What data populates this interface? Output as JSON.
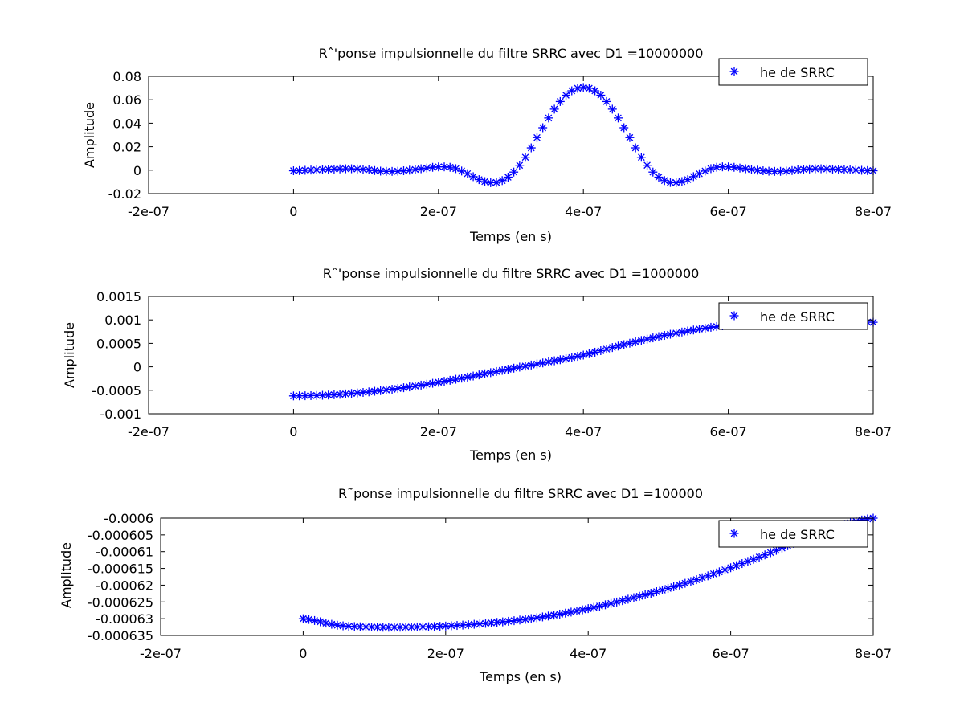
{
  "chart_data": [
    {
      "type": "scatter",
      "title": "Rˆ'ponse impulsionnelle du filtre SRRC avec D1 =10000000",
      "xlabel": "Temps (en s)",
      "ylabel": "Amplitude",
      "xlim": [
        -2e-07,
        8e-07
      ],
      "ylim": [
        -0.02,
        0.08
      ],
      "xticks": [
        -2e-07,
        0,
        2e-07,
        4e-07,
        6e-07,
        8e-07
      ],
      "xtick_labels": [
        "-2e-07",
        "0",
        "2e-07",
        "4e-07",
        "6e-07",
        "8e-07"
      ],
      "yticks": [
        -0.02,
        0,
        0.02,
        0.04,
        0.06,
        0.08
      ],
      "ytick_labels": [
        "-0.02",
        "0",
        "0.02",
        "0.04",
        "0.06",
        "0.08"
      ],
      "legend": "top-right",
      "series": [
        {
          "name": "he de SRRC",
          "color": "#0000ff",
          "marker": "asterisk",
          "x": [
            0,
            2e-08,
            4e-08,
            6e-08,
            8e-08,
            1e-07,
            1.2e-07,
            1.4e-07,
            1.6e-07,
            1.8e-07,
            2e-07,
            2.2e-07,
            2.4e-07,
            2.6e-07,
            2.8e-07,
            3e-07,
            3.2e-07,
            3.4e-07,
            3.6e-07,
            3.8e-07,
            4e-07,
            4.2e-07,
            4.4e-07,
            4.6e-07,
            4.8e-07,
            5e-07,
            5.2e-07,
            5.4e-07,
            5.6e-07,
            5.8e-07,
            6e-07,
            6.2e-07,
            6.4e-07,
            6.6e-07,
            6.8e-07,
            7e-07,
            7.2e-07,
            7.4e-07,
            7.6e-07,
            7.8e-07,
            8e-07
          ],
          "y": [
            -0.0005,
            0.0,
            0.0005,
            0.001,
            0.0012,
            0.0005,
            -0.0008,
            -0.001,
            0.0,
            0.0015,
            0.0028,
            0.002,
            -0.003,
            -0.009,
            -0.0105,
            -0.004,
            0.011,
            0.032,
            0.052,
            0.066,
            0.0705,
            0.066,
            0.052,
            0.032,
            0.011,
            -0.004,
            -0.0105,
            -0.009,
            -0.003,
            0.002,
            0.0028,
            0.0015,
            0.0,
            -0.001,
            -0.0008,
            0.0005,
            0.0012,
            0.001,
            0.0005,
            0.0,
            -0.0005
          ]
        }
      ]
    },
    {
      "type": "scatter",
      "title": "Rˆ'ponse impulsionnelle du filtre SRRC avec D1 =1000000",
      "xlabel": "Temps (en s)",
      "ylabel": "Amplitude",
      "xlim": [
        -2e-07,
        8e-07
      ],
      "ylim": [
        -0.001,
        0.0015
      ],
      "xticks": [
        -2e-07,
        0,
        2e-07,
        4e-07,
        6e-07,
        8e-07
      ],
      "xtick_labels": [
        "-2e-07",
        "0",
        "2e-07",
        "4e-07",
        "6e-07",
        "8e-07"
      ],
      "yticks": [
        -0.001,
        -0.0005,
        0,
        0.0005,
        0.001,
        0.0015
      ],
      "ytick_labels": [
        "-0.001",
        "-0.0005",
        "0",
        "0.0005",
        "0.001",
        "0.0015"
      ],
      "legend": "top-right",
      "series": [
        {
          "name": "he de SRRC",
          "color": "#0000ff",
          "marker": "asterisk",
          "x": [
            0,
            5e-08,
            1e-07,
            1.5e-07,
            2e-07,
            2.5e-07,
            3e-07,
            3.5e-07,
            4e-07,
            4.5e-07,
            5e-07,
            5.5e-07,
            6e-07,
            6.5e-07,
            7e-07,
            7.5e-07,
            8e-07
          ],
          "y": [
            -0.00062,
            -0.0006,
            -0.00054,
            -0.00045,
            -0.00033,
            -0.00019,
            -4e-05,
            0.0001,
            0.00025,
            0.00045,
            0.00063,
            0.00078,
            0.00089,
            0.00096,
            0.00099,
            0.00098,
            0.00095
          ]
        }
      ]
    },
    {
      "type": "scatter",
      "title": "R˜ponse impulsionnelle du filtre SRRC avec D1 =100000",
      "xlabel": "Temps (en s)",
      "ylabel": "Amplitude",
      "xlim": [
        -2e-07,
        8e-07
      ],
      "ylim": [
        -0.000635,
        -0.0006
      ],
      "xticks": [
        -2e-07,
        0,
        2e-07,
        4e-07,
        6e-07,
        8e-07
      ],
      "xtick_labels": [
        "-2e-07",
        "0",
        "2e-07",
        "4e-07",
        "6e-07",
        "8e-07"
      ],
      "yticks": [
        -0.000635,
        -0.00063,
        -0.000625,
        -0.00062,
        -0.000615,
        -0.00061,
        -0.000605,
        -0.0006
      ],
      "ytick_labels": [
        "-0.000635",
        "-0.00063",
        "-0.000625",
        "-0.00062",
        "-0.000615",
        "-0.00061",
        "-0.000605",
        "-0.0006"
      ],
      "legend": "top-right",
      "series": [
        {
          "name": "he de SRRC",
          "color": "#0000ff",
          "marker": "asterisk",
          "x": [
            0,
            5e-08,
            1e-07,
            1.5e-07,
            2e-07,
            2.5e-07,
            3e-07,
            3.5e-07,
            4e-07,
            4.5e-07,
            5e-07,
            5.5e-07,
            6e-07,
            6.5e-07,
            7e-07,
            7.5e-07,
            8e-07
          ],
          "y": [
            -0.00063,
            -0.000632,
            -0.0006325,
            -0.0006325,
            -0.0006322,
            -0.0006315,
            -0.0006305,
            -0.000629,
            -0.000627,
            -0.0006245,
            -0.0006217,
            -0.0006185,
            -0.0006148,
            -0.0006108,
            -0.0006065,
            -0.0006025,
            -0.0006
          ]
        }
      ]
    }
  ]
}
